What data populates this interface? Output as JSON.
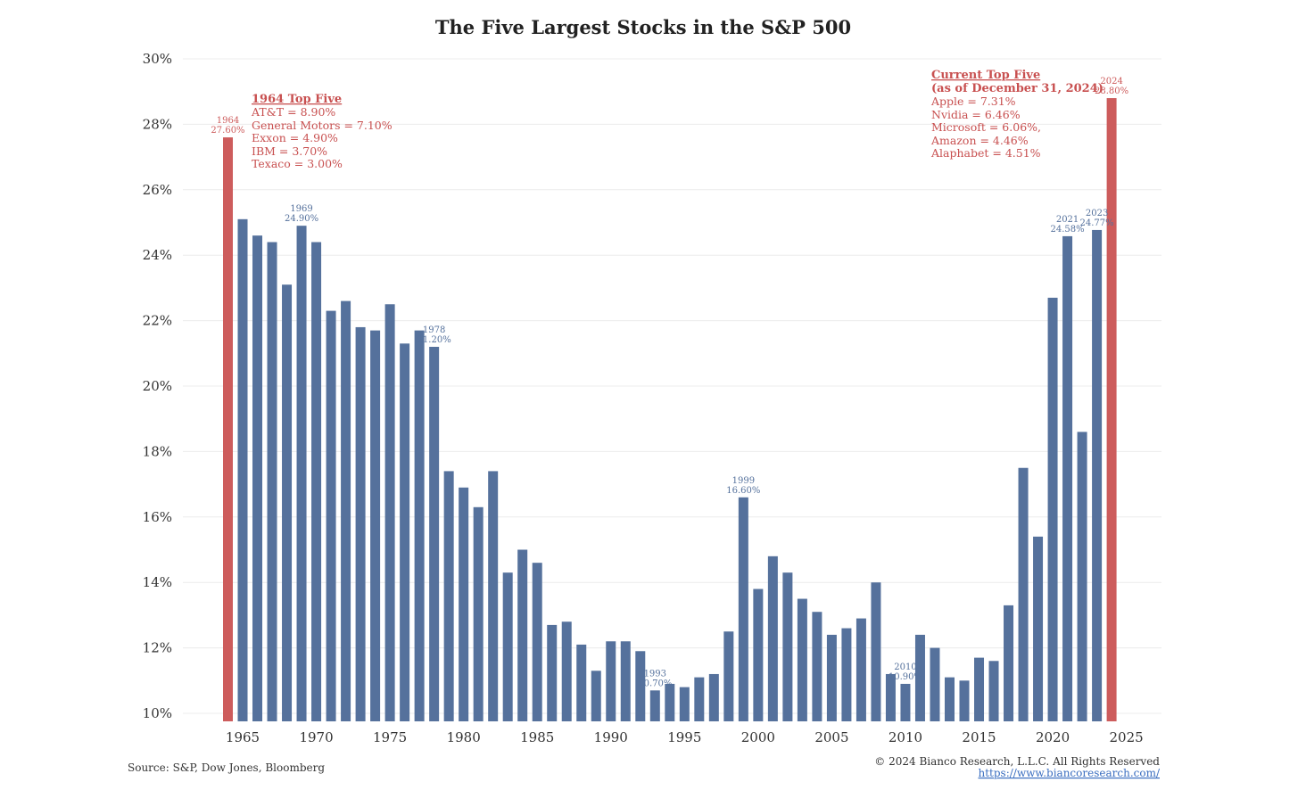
{
  "chart_data": {
    "type": "bar",
    "title": "The Five Largest Stocks in the S&P 500",
    "xlabel": "",
    "ylabel": "",
    "ylim": [
      10,
      30
    ],
    "y_ticks": [
      "10%",
      "12%",
      "14%",
      "16%",
      "18%",
      "20%",
      "22%",
      "24%",
      "26%",
      "28%",
      "30%"
    ],
    "x_ticks": [
      "1965",
      "1970",
      "1975",
      "1980",
      "1985",
      "1990",
      "1995",
      "2000",
      "2005",
      "2010",
      "2015",
      "2020",
      "2025"
    ],
    "grid": true,
    "colors": {
      "normal": "#55719c",
      "highlight": "#cd5c5c"
    },
    "years": [
      1964,
      1965,
      1966,
      1967,
      1968,
      1969,
      1970,
      1971,
      1972,
      1973,
      1974,
      1975,
      1976,
      1977,
      1978,
      1979,
      1980,
      1981,
      1982,
      1983,
      1984,
      1985,
      1986,
      1987,
      1988,
      1989,
      1990,
      1991,
      1992,
      1993,
      1994,
      1995,
      1996,
      1997,
      1998,
      1999,
      2000,
      2001,
      2002,
      2003,
      2004,
      2005,
      2006,
      2007,
      2008,
      2009,
      2010,
      2011,
      2012,
      2013,
      2014,
      2015,
      2016,
      2017,
      2018,
      2019,
      2020,
      2021,
      2022,
      2023,
      2024
    ],
    "values": [
      27.6,
      25.1,
      24.6,
      24.4,
      23.1,
      24.9,
      24.4,
      22.3,
      22.6,
      21.8,
      21.7,
      22.5,
      21.3,
      21.7,
      21.2,
      17.4,
      16.9,
      16.3,
      17.4,
      14.3,
      15.0,
      14.6,
      12.7,
      12.8,
      12.1,
      11.3,
      12.2,
      12.2,
      11.9,
      10.7,
      10.9,
      10.8,
      11.1,
      11.2,
      12.5,
      16.6,
      13.8,
      14.8,
      14.3,
      13.5,
      13.1,
      12.4,
      12.6,
      12.9,
      14.0,
      11.2,
      10.9,
      12.4,
      12.0,
      11.1,
      11.0,
      11.7,
      11.6,
      13.3,
      17.5,
      15.4,
      22.7,
      24.58,
      18.6,
      24.77,
      28.8
    ],
    "highlight_years": [
      1964,
      2024
    ],
    "bar_labels": [
      {
        "year": 1964,
        "lines": [
          "1964",
          "27.60%"
        ],
        "color": "#cd5c5c"
      },
      {
        "year": 1969,
        "lines": [
          "1969",
          "24.90%"
        ],
        "color": "#55719c"
      },
      {
        "year": 1978,
        "lines": [
          "1978",
          "21.20%"
        ],
        "color": "#55719c"
      },
      {
        "year": 1993,
        "lines": [
          "1993",
          "10.70%"
        ],
        "color": "#55719c"
      },
      {
        "year": 1999,
        "lines": [
          "1999",
          "16.60%"
        ],
        "color": "#55719c"
      },
      {
        "year": 2010,
        "lines": [
          "2010",
          "10.90%"
        ],
        "color": "#55719c"
      },
      {
        "year": 2021,
        "lines": [
          "2021",
          "24.58%"
        ],
        "color": "#55719c"
      },
      {
        "year": 2023,
        "lines": [
          "2023",
          "24.77%"
        ],
        "color": "#55719c"
      },
      {
        "year": 2024,
        "lines": [
          "2024",
          "28.80%"
        ],
        "color": "#cd5c5c"
      }
    ],
    "annotations": {
      "top_five_1964": {
        "heading": "1964 Top Five",
        "lines": [
          "AT&T = 8.90%",
          "General Motors = 7.10%",
          "Exxon = 4.90%",
          "IBM = 3.70%",
          "Texaco = 3.00%"
        ]
      },
      "top_five_current": {
        "heading": "Current Top Five",
        "subheading": "(as of December 31, 2024)",
        "lines": [
          "Apple = 7.31%",
          "Nvidia = 6.46%",
          "Microsoft = 6.06%,",
          "Amazon = 4.46%",
          "Alaphabet = 4.51%"
        ]
      }
    }
  },
  "footer": {
    "source": "Source: S&P, Dow Jones, Bloomberg",
    "copyright": "© 2024 Bianco Research, L.L.C. All Rights Reserved",
    "url": "https://www.biancoresearch.com/"
  }
}
